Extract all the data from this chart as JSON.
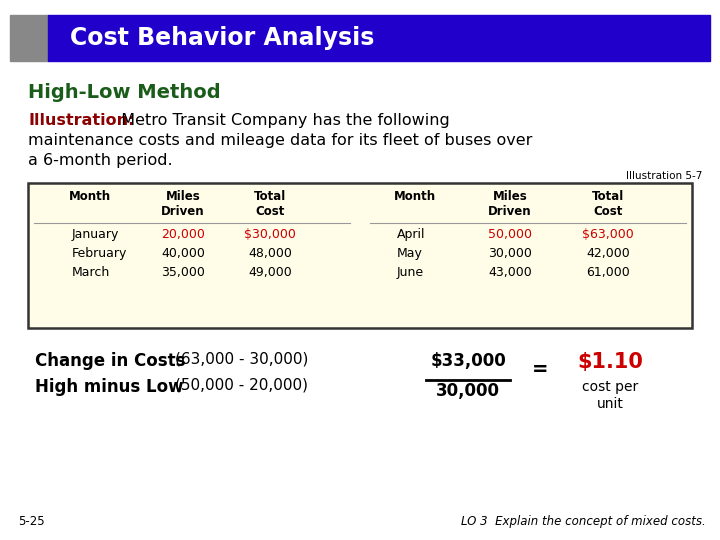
{
  "title": "Cost Behavior Analysis",
  "title_bg": "#2200CC",
  "title_fg": "#FFFFFF",
  "title_accent": "#888888",
  "subtitle": "High-Low Method",
  "subtitle_color": "#1a5c1a",
  "illustration_label": "Illustration:",
  "illustration_label_color": "#8B0000",
  "illustration_ref": "Illustration 5-7",
  "table_bg": "#FFFDE8",
  "table_border": "#333333",
  "left_data": [
    [
      "January",
      "20,000",
      "$30,000"
    ],
    [
      "February",
      "40,000",
      "48,000"
    ],
    [
      "March",
      "35,000",
      "49,000"
    ]
  ],
  "right_data": [
    [
      "April",
      "50,000",
      "$63,000"
    ],
    [
      "May",
      "30,000",
      "42,000"
    ],
    [
      "June",
      "43,000",
      "61,000"
    ]
  ],
  "highlight_color": "#CC0000",
  "normal_color": "#000000",
  "change_label": "Change in Costs",
  "change_detail": "(63,000 - 30,000)",
  "high_label": "High minus Low",
  "high_detail": "(50,000 - 20,000)",
  "numerator": "$33,000",
  "denominator": "30,000",
  "result": "$1.10",
  "result_color": "#CC0000",
  "equals_sign": "=",
  "footer_left": "5-25",
  "footer_right": "LO 3  Explain the concept of mixed costs.",
  "bg_color": "#FFFFFF"
}
